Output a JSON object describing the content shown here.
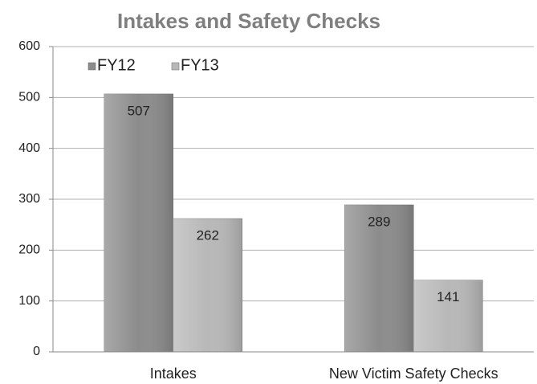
{
  "chart_data": {
    "type": "bar",
    "title": "Intakes and Safety Checks",
    "categories": [
      "Intakes",
      "New Victim Safety Checks"
    ],
    "series": [
      {
        "name": "FY12",
        "color": "#8c8c8c",
        "values": [
          507,
          289
        ]
      },
      {
        "name": "FY13",
        "color": "#b8b8b8",
        "values": [
          262,
          141
        ]
      }
    ],
    "ylim": [
      0,
      600
    ],
    "yticks": [
      0,
      100,
      200,
      300,
      400,
      500,
      600
    ],
    "grid": true,
    "legend": "top-left"
  }
}
